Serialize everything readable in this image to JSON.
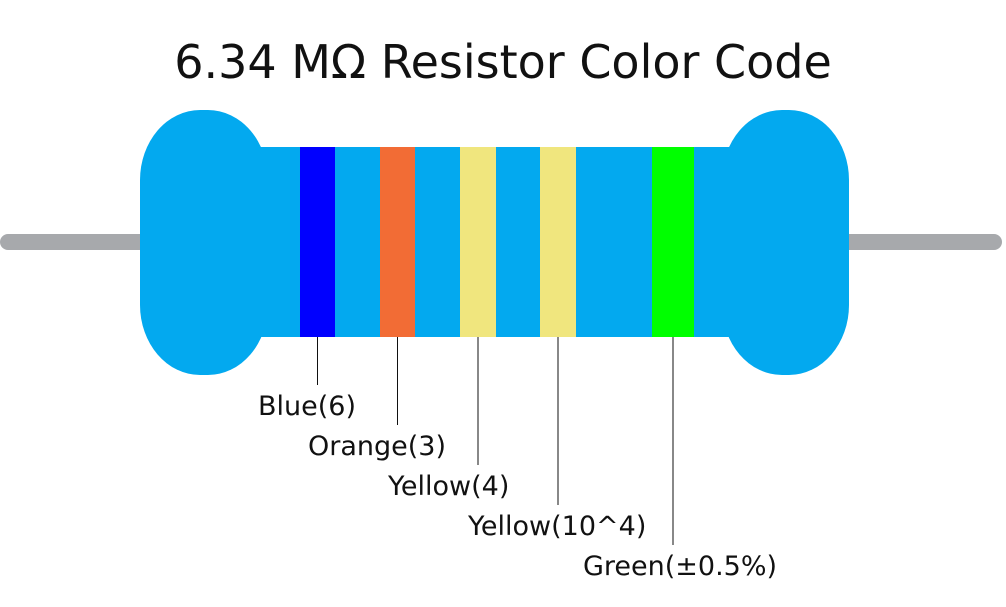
{
  "title": "6.34 MΩ Resistor Color Code",
  "bands": [
    {
      "label": "Blue(6)",
      "color": "#0000ff"
    },
    {
      "label": "Orange(3)",
      "color": "#f26c35"
    },
    {
      "label": "Yellow(4)",
      "color": "#f0e67e"
    },
    {
      "label": "Yellow(10^4)",
      "color": "#f0e67e"
    },
    {
      "label": "Green(±0.5%)",
      "color": "#00ff00"
    }
  ]
}
